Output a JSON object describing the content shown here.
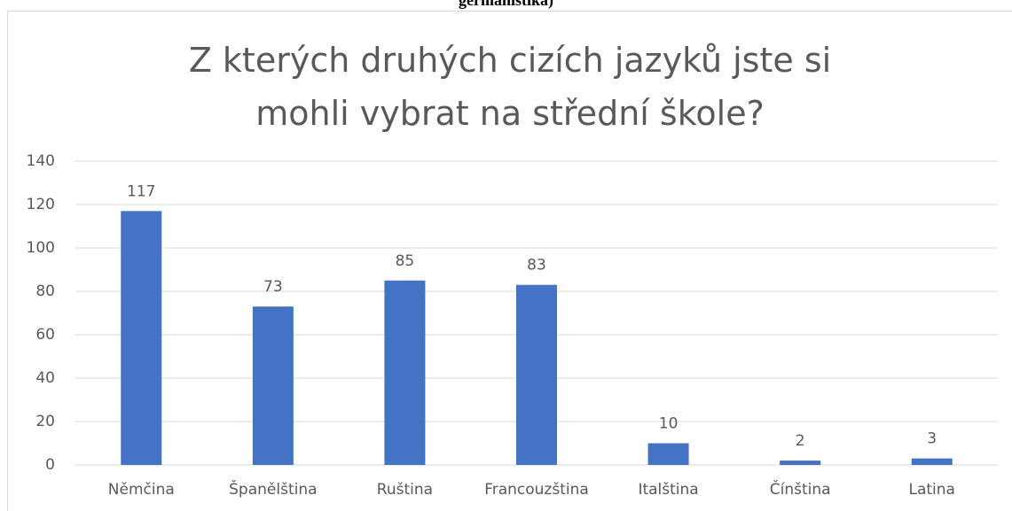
{
  "caption": "germanistika)",
  "chart_data": {
    "type": "bar",
    "title": "Z kterých druhých cizích jazyků jste si mohli vybrat na střední škole?",
    "categories": [
      "Němčina",
      "Španělština",
      "Ruština",
      "Francouzština",
      "Italština",
      "Čínština",
      "Latina"
    ],
    "values": [
      117,
      73,
      85,
      83,
      10,
      2,
      3
    ],
    "color": "#4472c4",
    "ylim": [
      0,
      140
    ],
    "yticks": [
      0,
      20,
      40,
      60,
      80,
      100,
      120,
      140
    ],
    "grid": true,
    "data_labels": true
  }
}
